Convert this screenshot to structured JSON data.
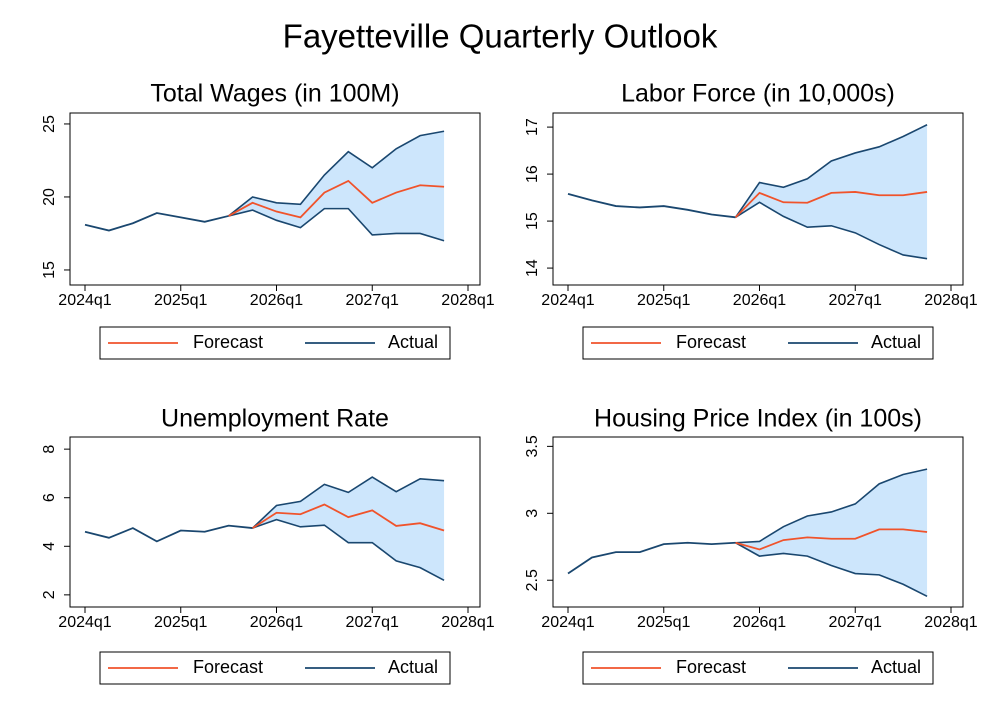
{
  "title": "Fayetteville Quarterly Outlook",
  "chart_data": [
    {
      "type": "line",
      "title": "Total Wages (in 100M)",
      "x": [
        "2024q1",
        "2024q2",
        "2024q3",
        "2024q4",
        "2025q1",
        "2025q2",
        "2025q3",
        "2025q4",
        "2026q1",
        "2026q2",
        "2026q3",
        "2026q4",
        "2027q1",
        "2027q2",
        "2027q3",
        "2027q4"
      ],
      "series": [
        {
          "name": "Forecast",
          "color": "#f0532b",
          "values": [
            null,
            null,
            null,
            null,
            null,
            null,
            18.7,
            19.6,
            19.0,
            18.6,
            20.3,
            21.1,
            19.6,
            20.3,
            20.8,
            20.7
          ]
        },
        {
          "name": "Actual",
          "color": "#1a476f",
          "values": [
            18.1,
            17.7,
            18.2,
            18.9,
            18.6,
            18.3,
            18.7,
            null,
            null,
            null,
            null,
            null,
            null,
            null,
            null,
            null
          ]
        }
      ],
      "interval": {
        "color": "#cde6fc",
        "line_color": "#1a476f",
        "upper": [
          null,
          null,
          null,
          null,
          null,
          null,
          18.7,
          20.0,
          19.6,
          19.5,
          21.5,
          23.1,
          22.0,
          23.3,
          24.2,
          24.5
        ],
        "lower": [
          null,
          null,
          null,
          null,
          null,
          null,
          18.7,
          19.1,
          18.4,
          17.9,
          19.2,
          19.2,
          17.4,
          17.5,
          17.5,
          17.0
        ]
      },
      "xlim": [
        "2024q1",
        "2028q1"
      ],
      "xticks": [
        "2024q1",
        "2025q1",
        "2026q1",
        "2027q1",
        "2028q1"
      ],
      "ylim": [
        13.97,
        25.75
      ],
      "yticks": [
        15,
        20,
        25
      ],
      "legend": "bottom"
    },
    {
      "type": "line",
      "title": "Labor Force (in 10,000s)",
      "x": [
        "2024q1",
        "2024q2",
        "2024q3",
        "2024q4",
        "2025q1",
        "2025q2",
        "2025q3",
        "2025q4",
        "2026q1",
        "2026q2",
        "2026q3",
        "2026q4",
        "2027q1",
        "2027q2",
        "2027q3",
        "2027q4"
      ],
      "series": [
        {
          "name": "Forecast",
          "color": "#f0532b",
          "values": [
            null,
            null,
            null,
            null,
            null,
            null,
            null,
            15.08,
            15.6,
            15.4,
            15.39,
            15.6,
            15.62,
            15.55,
            15.55,
            15.62
          ]
        },
        {
          "name": "Actual",
          "color": "#1a476f",
          "values": [
            15.58,
            15.44,
            15.32,
            15.29,
            15.32,
            15.24,
            15.14,
            15.08,
            null,
            null,
            null,
            null,
            null,
            null,
            null,
            null
          ]
        }
      ],
      "interval": {
        "color": "#cde6fc",
        "line_color": "#1a476f",
        "upper": [
          null,
          null,
          null,
          null,
          null,
          null,
          null,
          15.08,
          15.82,
          15.72,
          15.9,
          16.28,
          16.45,
          16.58,
          16.8,
          17.05
        ],
        "lower": [
          null,
          null,
          null,
          null,
          null,
          null,
          null,
          15.08,
          15.4,
          15.1,
          14.87,
          14.9,
          14.75,
          14.5,
          14.28,
          14.2
        ]
      },
      "xlim": [
        "2024q1",
        "2028q1"
      ],
      "xticks": [
        "2024q1",
        "2025q1",
        "2026q1",
        "2027q1",
        "2028q1"
      ],
      "ylim": [
        13.64,
        17.3
      ],
      "yticks": [
        14,
        15,
        16,
        17
      ],
      "legend": "bottom"
    },
    {
      "type": "line",
      "title": "Unemployment Rate",
      "x": [
        "2024q1",
        "2024q2",
        "2024q3",
        "2024q4",
        "2025q1",
        "2025q2",
        "2025q3",
        "2025q4",
        "2026q1",
        "2026q2",
        "2026q3",
        "2026q4",
        "2027q1",
        "2027q2",
        "2027q3",
        "2027q4"
      ],
      "series": [
        {
          "name": "Forecast",
          "color": "#f0532b",
          "values": [
            null,
            null,
            null,
            null,
            null,
            null,
            null,
            4.75,
            5.38,
            5.32,
            5.72,
            5.2,
            5.48,
            4.84,
            4.95,
            4.65
          ]
        },
        {
          "name": "Actual",
          "color": "#1a476f",
          "values": [
            4.6,
            4.35,
            4.75,
            4.2,
            4.65,
            4.6,
            4.85,
            4.75,
            null,
            null,
            null,
            null,
            null,
            null,
            null,
            null
          ]
        }
      ],
      "interval": {
        "color": "#cde6fc",
        "line_color": "#1a476f",
        "upper": [
          null,
          null,
          null,
          null,
          null,
          null,
          null,
          4.75,
          5.68,
          5.85,
          6.55,
          6.22,
          6.85,
          6.25,
          6.78,
          6.7
        ],
        "lower": [
          null,
          null,
          null,
          null,
          null,
          null,
          null,
          4.75,
          5.1,
          4.8,
          4.87,
          4.15,
          4.15,
          3.4,
          3.12,
          2.6
        ]
      },
      "xlim": [
        "2024q1",
        "2028q1"
      ],
      "xticks": [
        "2024q1",
        "2025q1",
        "2026q1",
        "2027q1",
        "2028q1"
      ],
      "ylim": [
        1.5,
        8.5
      ],
      "yticks": [
        2,
        4,
        6,
        8
      ],
      "legend": "bottom"
    },
    {
      "type": "line",
      "title": "Housing Price Index (in 100s)",
      "x": [
        "2024q1",
        "2024q2",
        "2024q3",
        "2024q4",
        "2025q1",
        "2025q2",
        "2025q3",
        "2025q4",
        "2026q1",
        "2026q2",
        "2026q3",
        "2026q4",
        "2027q1",
        "2027q2",
        "2027q3",
        "2027q4"
      ],
      "series": [
        {
          "name": "Forecast",
          "color": "#f0532b",
          "values": [
            null,
            null,
            null,
            null,
            null,
            null,
            null,
            2.78,
            2.73,
            2.8,
            2.82,
            2.81,
            2.81,
            2.88,
            2.88,
            2.86
          ]
        },
        {
          "name": "Actual",
          "color": "#1a476f",
          "values": [
            2.55,
            2.67,
            2.71,
            2.71,
            2.77,
            2.78,
            2.77,
            2.78,
            null,
            null,
            null,
            null,
            null,
            null,
            null,
            null
          ]
        }
      ],
      "interval": {
        "color": "#cde6fc",
        "line_color": "#1a476f",
        "upper": [
          null,
          null,
          null,
          null,
          null,
          null,
          null,
          2.78,
          2.79,
          2.9,
          2.98,
          3.01,
          3.07,
          3.22,
          3.29,
          3.33
        ],
        "lower": [
          null,
          null,
          null,
          null,
          null,
          null,
          null,
          2.78,
          2.68,
          2.7,
          2.68,
          2.61,
          2.55,
          2.54,
          2.47,
          2.38
        ]
      },
      "xlim": [
        "2024q1",
        "2028q1"
      ],
      "xticks": [
        "2024q1",
        "2025q1",
        "2026q1",
        "2027q1",
        "2028q1"
      ],
      "ylim": [
        2.3,
        3.57
      ],
      "yticks": [
        2.5,
        3,
        3.5
      ],
      "legend": "bottom"
    }
  ]
}
